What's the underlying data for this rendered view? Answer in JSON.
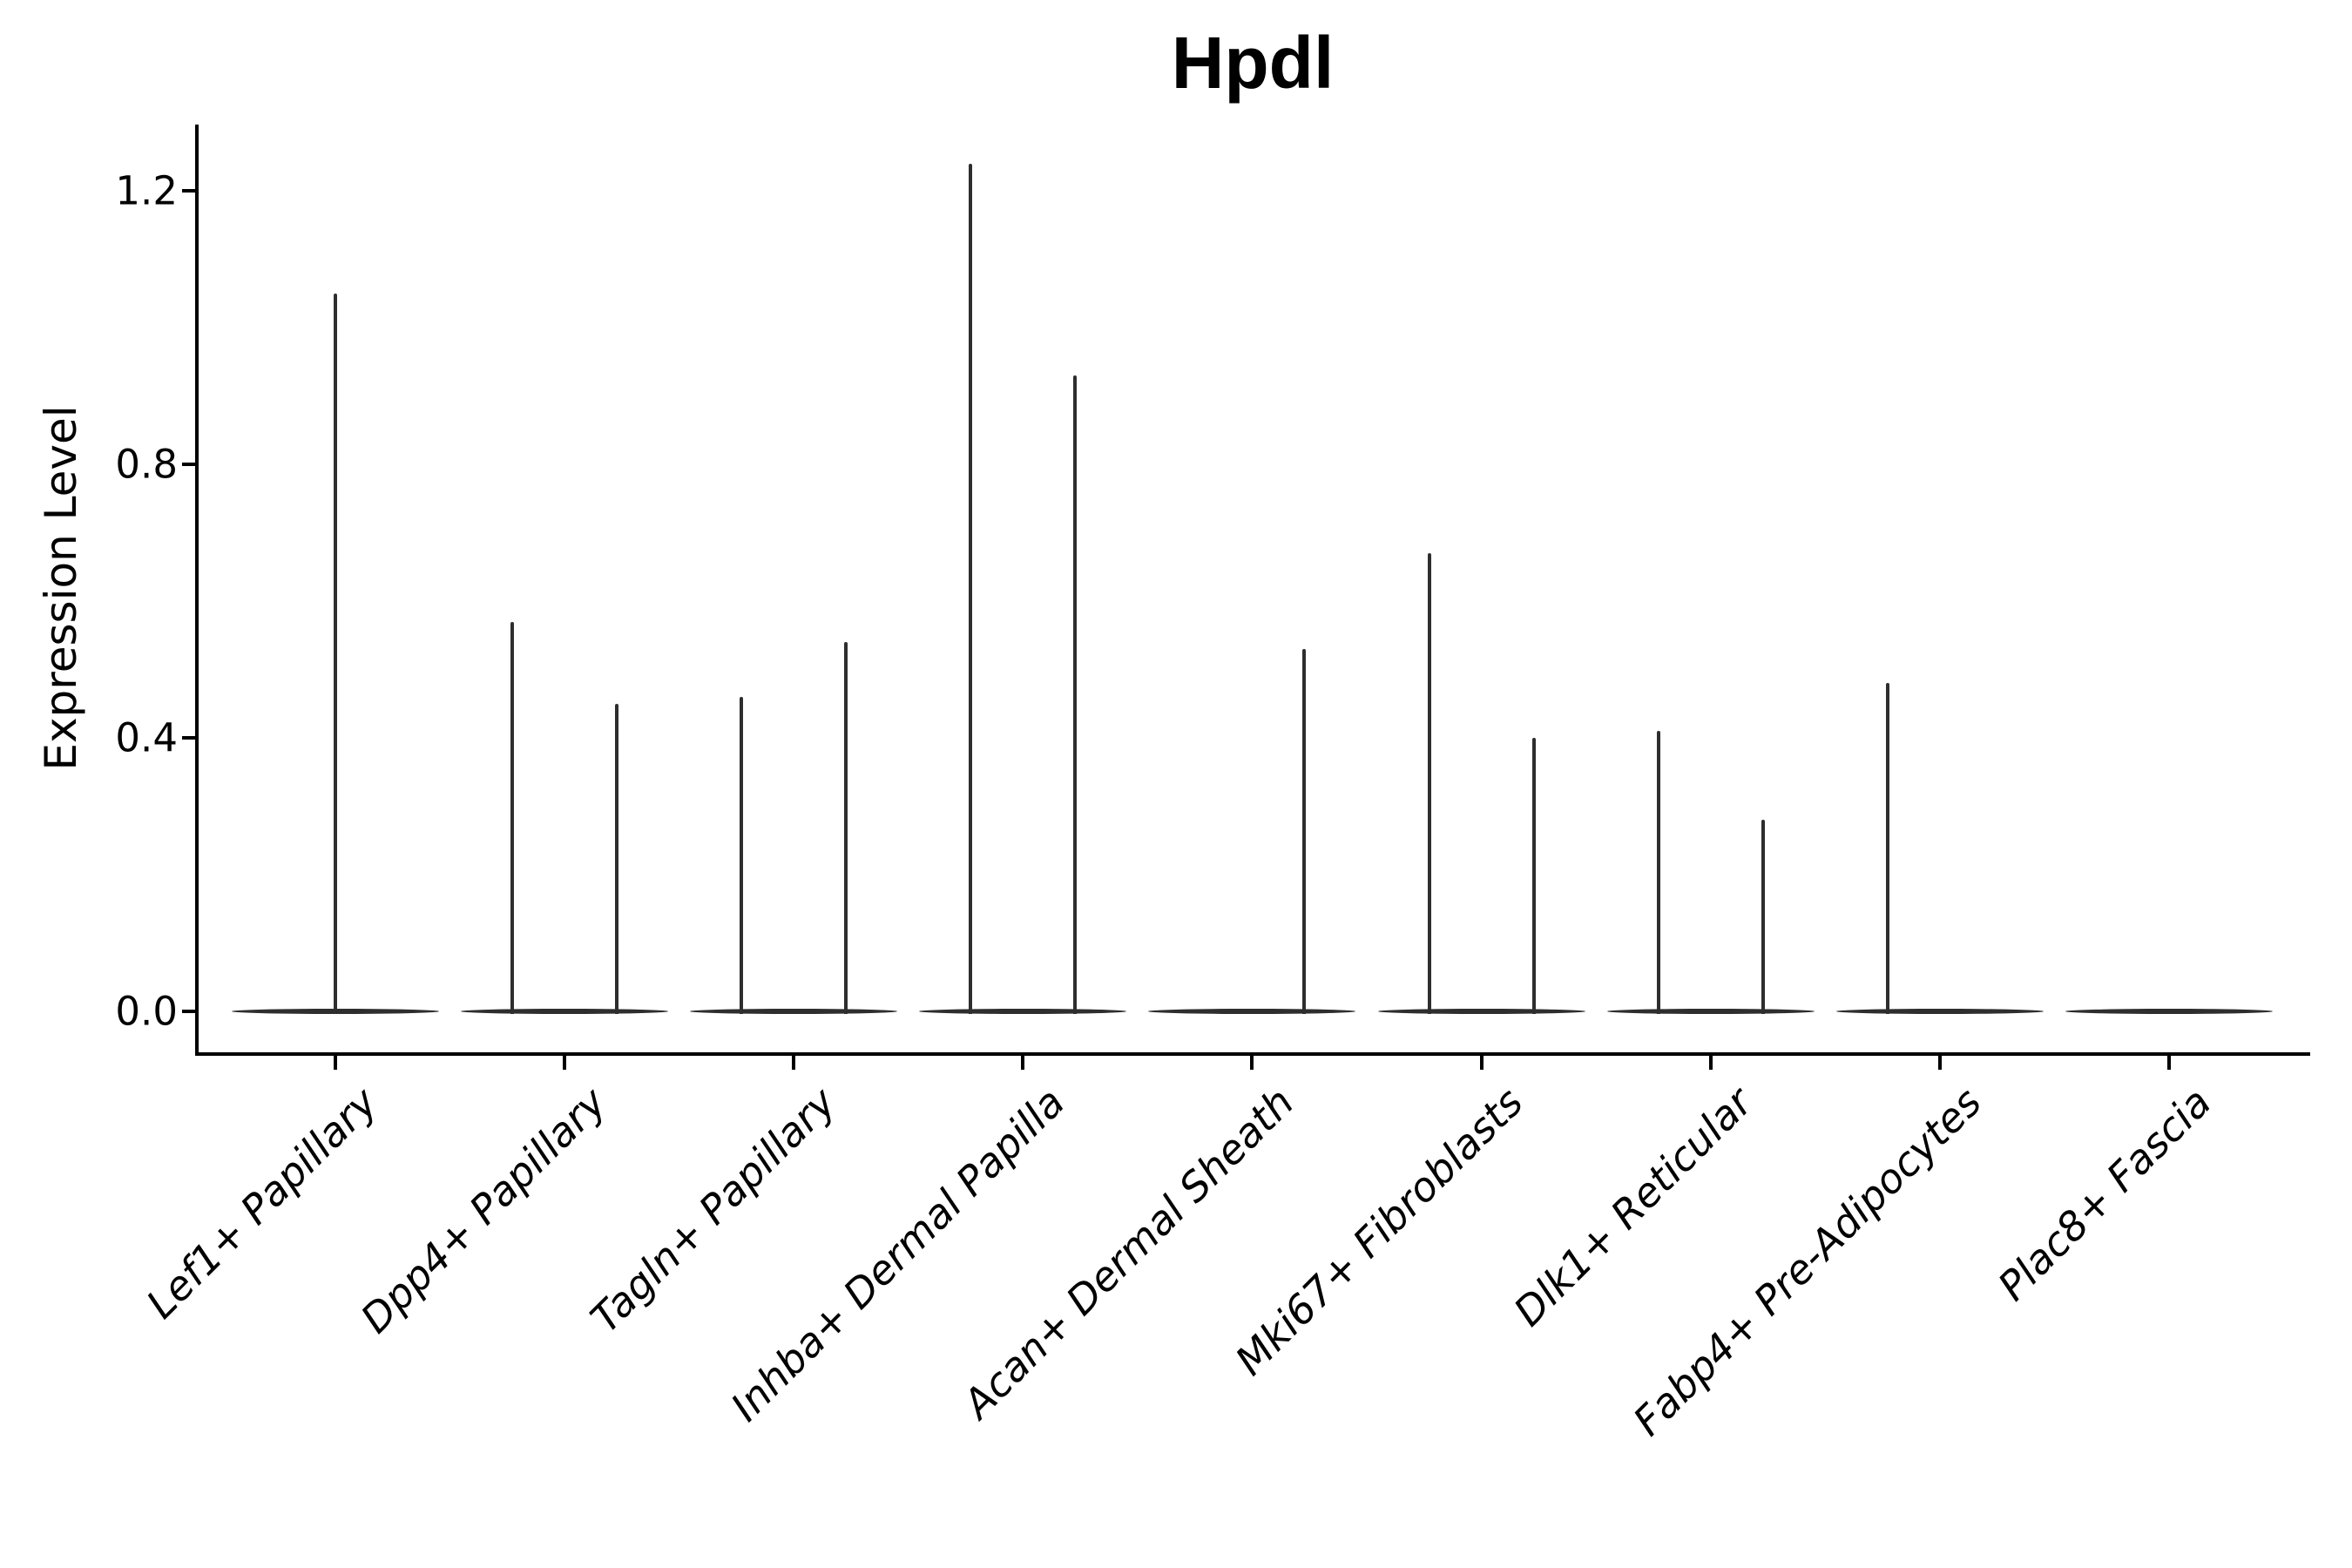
{
  "chart_data": {
    "type": "violin",
    "title": "Hpdl",
    "ylabel": "Expression Level",
    "xlabel": "",
    "grid": false,
    "legend": "none",
    "background_color": "#ffffff",
    "yticks": [
      "0.0",
      "0.4",
      "0.8",
      "1.2"
    ],
    "ytick_values": [
      0.0,
      0.4,
      0.8,
      1.2
    ],
    "ylim": [
      -0.06,
      1.3
    ],
    "categories": [
      "Lef1+ Papillary",
      "Dpp4+ Papillary",
      "Tagln+ Papillary",
      "Inhba+ Dermal Papilla",
      "Acan+ Dermal Sheath",
      "Mki67+ Fibroblasts",
      "Dlk1+ Reticular",
      "Fabp4+ Pre-Adipocytes",
      "Plac8+ Fascia"
    ],
    "violins": [
      {
        "category": "Lef1+ Papillary",
        "spikes": [
          {
            "position": 0,
            "expression_max": 1.05
          }
        ]
      },
      {
        "category": "Dpp4+ Papillary",
        "spikes": [
          {
            "position": -1,
            "expression_max": 0.57
          },
          {
            "position": 1,
            "expression_max": 0.45
          }
        ]
      },
      {
        "category": "Tagln+ Papillary",
        "spikes": [
          {
            "position": -1,
            "expression_max": 0.46
          },
          {
            "position": 1,
            "expression_max": 0.54
          }
        ]
      },
      {
        "category": "Inhba+ Dermal Papilla",
        "spikes": [
          {
            "position": -1,
            "expression_max": 1.24
          },
          {
            "position": 1,
            "expression_max": 0.93
          }
        ]
      },
      {
        "category": "Acan+ Dermal Sheath",
        "spikes": [
          {
            "position": 1,
            "expression_max": 0.53
          }
        ]
      },
      {
        "category": "Mki67+ Fibroblasts",
        "spikes": [
          {
            "position": -1,
            "expression_max": 0.67
          },
          {
            "position": 1,
            "expression_max": 0.4
          }
        ]
      },
      {
        "category": "Dlk1+ Reticular",
        "spikes": [
          {
            "position": -1,
            "expression_max": 0.41
          },
          {
            "position": 1,
            "expression_max": 0.28
          }
        ]
      },
      {
        "category": "Fabp4+ Pre-Adipocytes",
        "spikes": [
          {
            "position": -1,
            "expression_max": 0.48
          }
        ]
      },
      {
        "category": "Plac8+ Fascia",
        "spikes": []
      }
    ],
    "colors": {
      "violin": "#2e2e2e",
      "axis": "#000000",
      "text": "#000000"
    }
  }
}
